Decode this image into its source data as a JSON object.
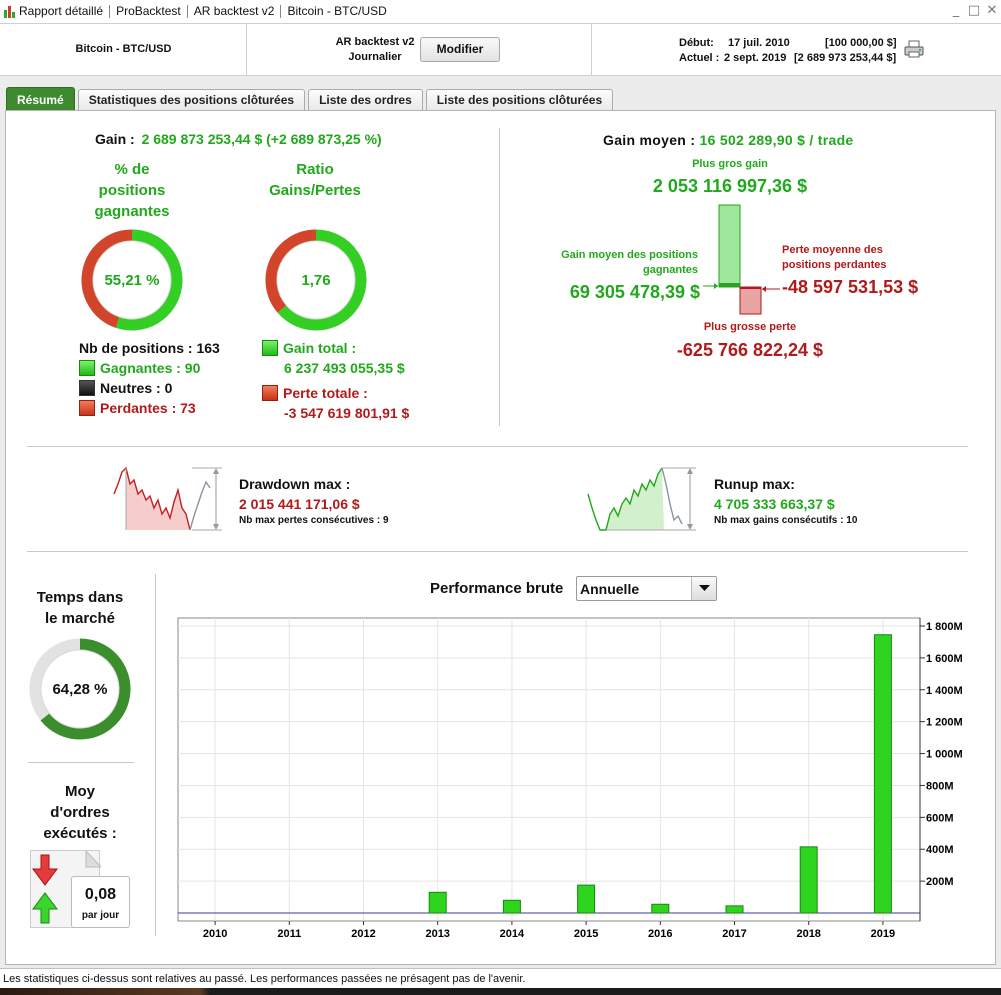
{
  "window": {
    "breadcrumbs": [
      "Rapport détaillé",
      "ProBacktest",
      "AR backtest v2",
      "Bitcoin - BTC/USD"
    ],
    "controls": {
      "minimize": "_",
      "maximize": "□",
      "close": "✕"
    }
  },
  "header": {
    "instrument": "Bitcoin - BTC/USD",
    "backtest_name": "AR backtest v2",
    "timeframe": "Journalier",
    "modify_label": "Modifier",
    "start_label": "Début:",
    "start_date": "17 juil. 2010",
    "start_capital": "[100 000,00 $]",
    "current_label": "Actuel :",
    "current_date": "2 sept. 2019",
    "current_capital": "[2 689 973 253,44 $]",
    "print_icon": "printer-icon"
  },
  "tabs": [
    "Résumé",
    "Statistiques des positions clôturées",
    "Liste des ordres",
    "Liste des positions clôturées"
  ],
  "summary": {
    "gain_label": "Gain :",
    "gain_value": "2 689 873 253,44 $ (+2 689 873,25 %)",
    "win_pct_title_1": "% de",
    "win_pct_title_2": "positions",
    "win_pct_title_3": "gagnantes",
    "win_pct_value": "55,21 %",
    "win_pct_fraction": 0.5521,
    "ratio_title_1": "Ratio",
    "ratio_title_2": "Gains/Pertes",
    "ratio_value": "1,76",
    "ratio_fraction": 0.637,
    "nb_positions_label": "Nb de positions :",
    "nb_positions": "163",
    "winners_label": "Gagnantes :",
    "winners": "90",
    "neutral_label": "Neutres :",
    "neutral": "0",
    "losers_label": "Perdantes :",
    "losers": "73",
    "total_gain_label": "Gain total :",
    "total_gain": "6 237 493 055,35 $",
    "total_loss_label": "Perte totale :",
    "total_loss": "-3 547 619 801,91 $"
  },
  "average": {
    "title_label": "Gain moyen :",
    "title_value": "16 502 289,90 $ / trade",
    "biggest_gain_label": "Plus gros gain",
    "biggest_gain": "2 053 116 997,36 $",
    "avg_win_label_1": "Gain moyen des positions",
    "avg_win_label_2": "gagnantes",
    "avg_win": "69 305 478,39 $",
    "avg_loss_label_1": "Perte moyenne des",
    "avg_loss_label_2": "positions perdantes",
    "avg_loss": "-48 597 531,53 $",
    "biggest_loss_label": "Plus grosse perte",
    "biggest_loss": "-625 766 822,24 $"
  },
  "drawdown": {
    "label": "Drawdown max :",
    "value": "2 015 441 171,06 $",
    "consecutive_label": "Nb max pertes consécutives :",
    "consecutive": "9"
  },
  "runup": {
    "label": "Runup max:",
    "value": "4 705 333 663,37 $",
    "consecutive_label": "Nb max gains consécutifs :",
    "consecutive": "10"
  },
  "market_time": {
    "title_1": "Temps dans",
    "title_2": "le marché",
    "value": "64,28 %",
    "fraction": 0.6428
  },
  "orders": {
    "title_1": "Moy",
    "title_2": "d'ordres",
    "title_3": "exécutés :",
    "value": "0,08",
    "unit": "par jour"
  },
  "performance": {
    "label": "Performance brute",
    "period_selected": "Annuelle"
  },
  "chart_data": {
    "type": "bar",
    "title": "Performance brute",
    "categories": [
      "2010",
      "2011",
      "2012",
      "2013",
      "2014",
      "2015",
      "2016",
      "2017",
      "2018",
      "2019"
    ],
    "values": [
      0,
      0,
      0,
      130,
      80,
      175,
      55,
      45,
      415,
      1745
    ],
    "unit": "M",
    "y_ticks": [
      "200M",
      "400M",
      "600M",
      "800M",
      "1 000M",
      "1 200M",
      "1 400M",
      "1 600M",
      "1 800M"
    ],
    "ylim": [
      -50,
      1850
    ],
    "axis_position": "right",
    "grid": true,
    "bar_color": "#2fd41f"
  },
  "footer": {
    "disclaimer": "Les statistiques ci-dessus sont relatives au passé. Les performances passées ne présagent pas de l'avenir."
  }
}
